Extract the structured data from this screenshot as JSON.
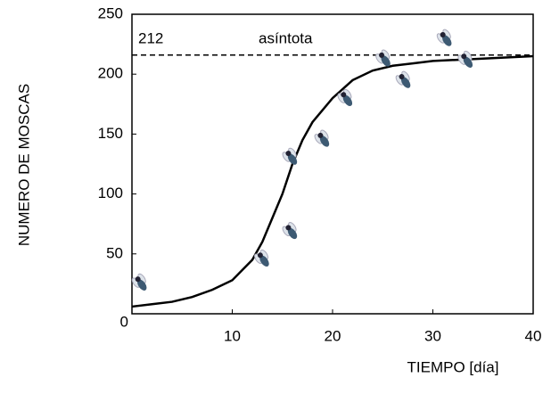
{
  "chart_data": {
    "type": "line",
    "x_label": "TIEMPO [día]",
    "y_label": "NUMERO  DE  MOSCAS",
    "xlim": [
      0,
      40
    ],
    "ylim": [
      0,
      250
    ],
    "xticks": [
      10,
      20,
      30,
      40
    ],
    "yticks": [
      0,
      50,
      100,
      150,
      200,
      250
    ],
    "series": [
      {
        "name": "curva",
        "color": "#000000",
        "x": [
          0,
          2,
          4,
          6,
          8,
          10,
          12,
          13,
          14,
          15,
          16,
          17,
          18,
          20,
          22,
          24,
          26,
          28,
          30,
          35,
          40
        ],
        "values": [
          6,
          8,
          10,
          14,
          20,
          28,
          45,
          60,
          80,
          100,
          125,
          145,
          160,
          180,
          195,
          203,
          207,
          209,
          211,
          213,
          215
        ]
      },
      {
        "name": "moscas",
        "color": "#3d5a73",
        "x": [
          1,
          13.2,
          16,
          16,
          19.2,
          21.5,
          25.3,
          27.3,
          31.4,
          33.5
        ],
        "values": [
          24,
          44,
          67,
          129,
          144,
          178,
          211,
          193,
          228,
          210
        ]
      }
    ],
    "asymptote": 216,
    "annotations": [
      "212",
      "asíntota"
    ]
  }
}
